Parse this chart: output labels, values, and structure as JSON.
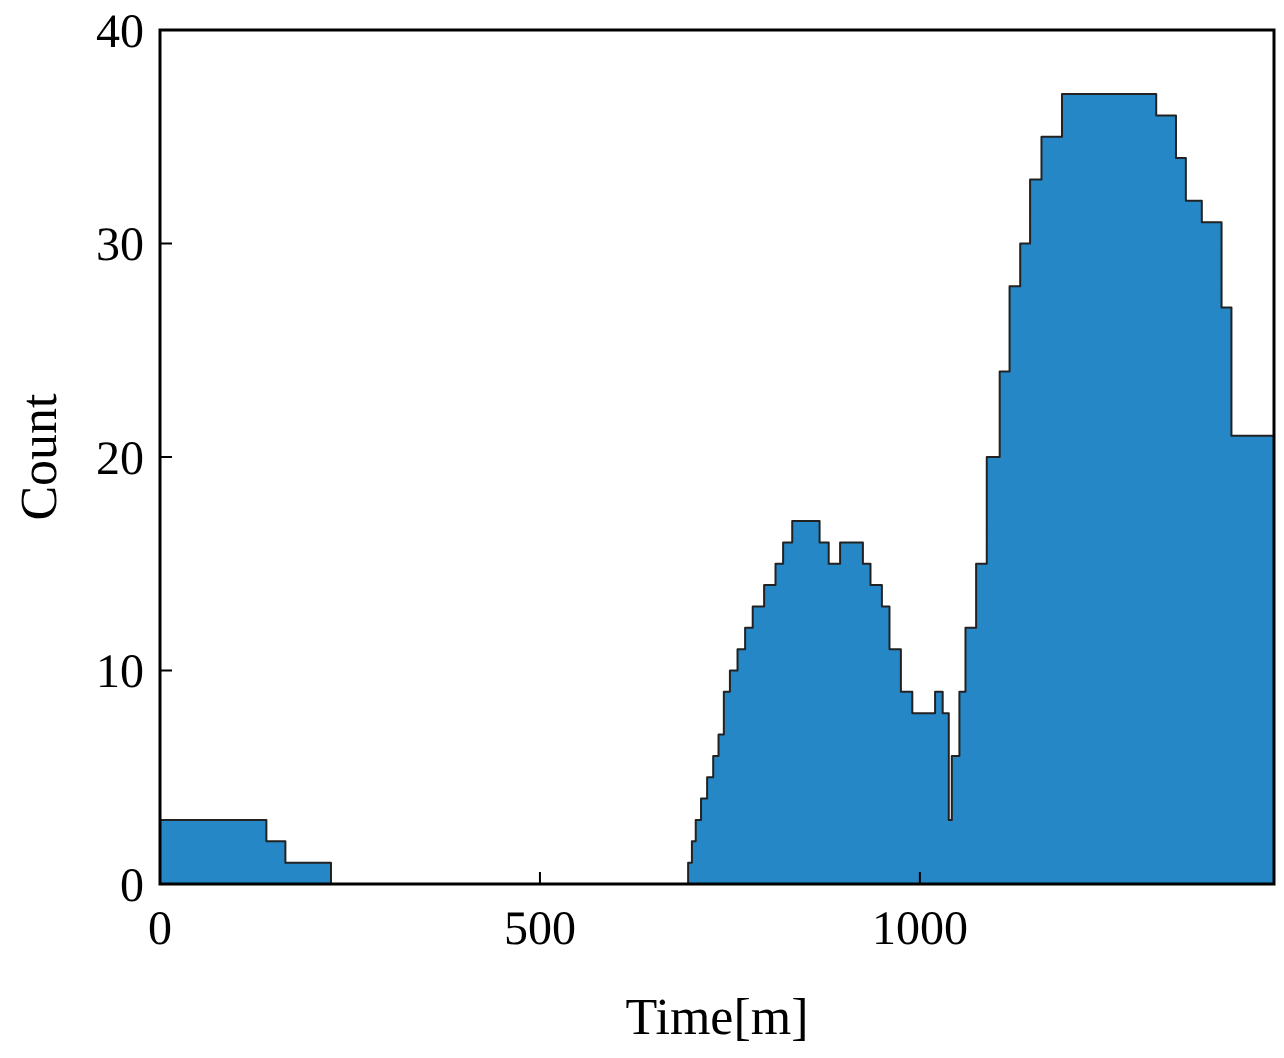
{
  "chart_data": {
    "type": "area",
    "xlabel": "Time[m]",
    "ylabel": "Count",
    "xlim": [
      0,
      1466
    ],
    "xticks": [
      0,
      500,
      1000
    ],
    "ylim": [
      0,
      40
    ],
    "yticks": [
      0,
      10,
      20,
      30,
      40
    ],
    "grid": false,
    "series": [
      {
        "color": "#0072bd",
        "x": [
          0,
          140,
          140,
          165,
          165,
          225,
          225,
          695,
          695,
          700,
          700,
          705,
          705,
          712,
          712,
          720,
          720,
          728,
          728,
          735,
          735,
          742,
          742,
          750,
          750,
          760,
          760,
          770,
          770,
          780,
          780,
          795,
          795,
          810,
          810,
          820,
          820,
          832,
          832,
          868,
          868,
          880,
          880,
          895,
          895,
          925,
          925,
          935,
          935,
          950,
          950,
          960,
          960,
          975,
          975,
          990,
          990,
          1020,
          1020,
          1030,
          1030,
          1038,
          1038,
          1042,
          1042,
          1052,
          1052,
          1060,
          1060,
          1074,
          1074,
          1088,
          1088,
          1105,
          1105,
          1118,
          1118,
          1132,
          1132,
          1145,
          1145,
          1160,
          1160,
          1187,
          1187,
          1311,
          1311,
          1337,
          1337,
          1350,
          1350,
          1371,
          1371,
          1397,
          1397,
          1410,
          1410,
          1466
        ],
        "values": [
          3,
          3,
          2,
          2,
          1,
          1,
          0,
          0,
          1,
          1,
          2,
          2,
          3,
          3,
          4,
          4,
          5,
          5,
          6,
          6,
          7,
          7,
          9,
          9,
          10,
          10,
          11,
          11,
          12,
          12,
          13,
          13,
          14,
          14,
          15,
          15,
          16,
          16,
          17,
          17,
          16,
          16,
          15,
          15,
          16,
          16,
          15,
          15,
          14,
          14,
          13,
          13,
          11,
          11,
          9,
          9,
          8,
          8,
          9,
          9,
          8,
          8,
          3,
          3,
          6,
          6,
          9,
          9,
          12,
          12,
          15,
          15,
          20,
          20,
          24,
          24,
          28,
          28,
          30,
          30,
          33,
          33,
          35,
          35,
          37,
          37,
          36,
          36,
          34,
          34,
          32,
          32,
          31,
          31,
          27,
          27,
          21,
          21
        ]
      }
    ]
  }
}
